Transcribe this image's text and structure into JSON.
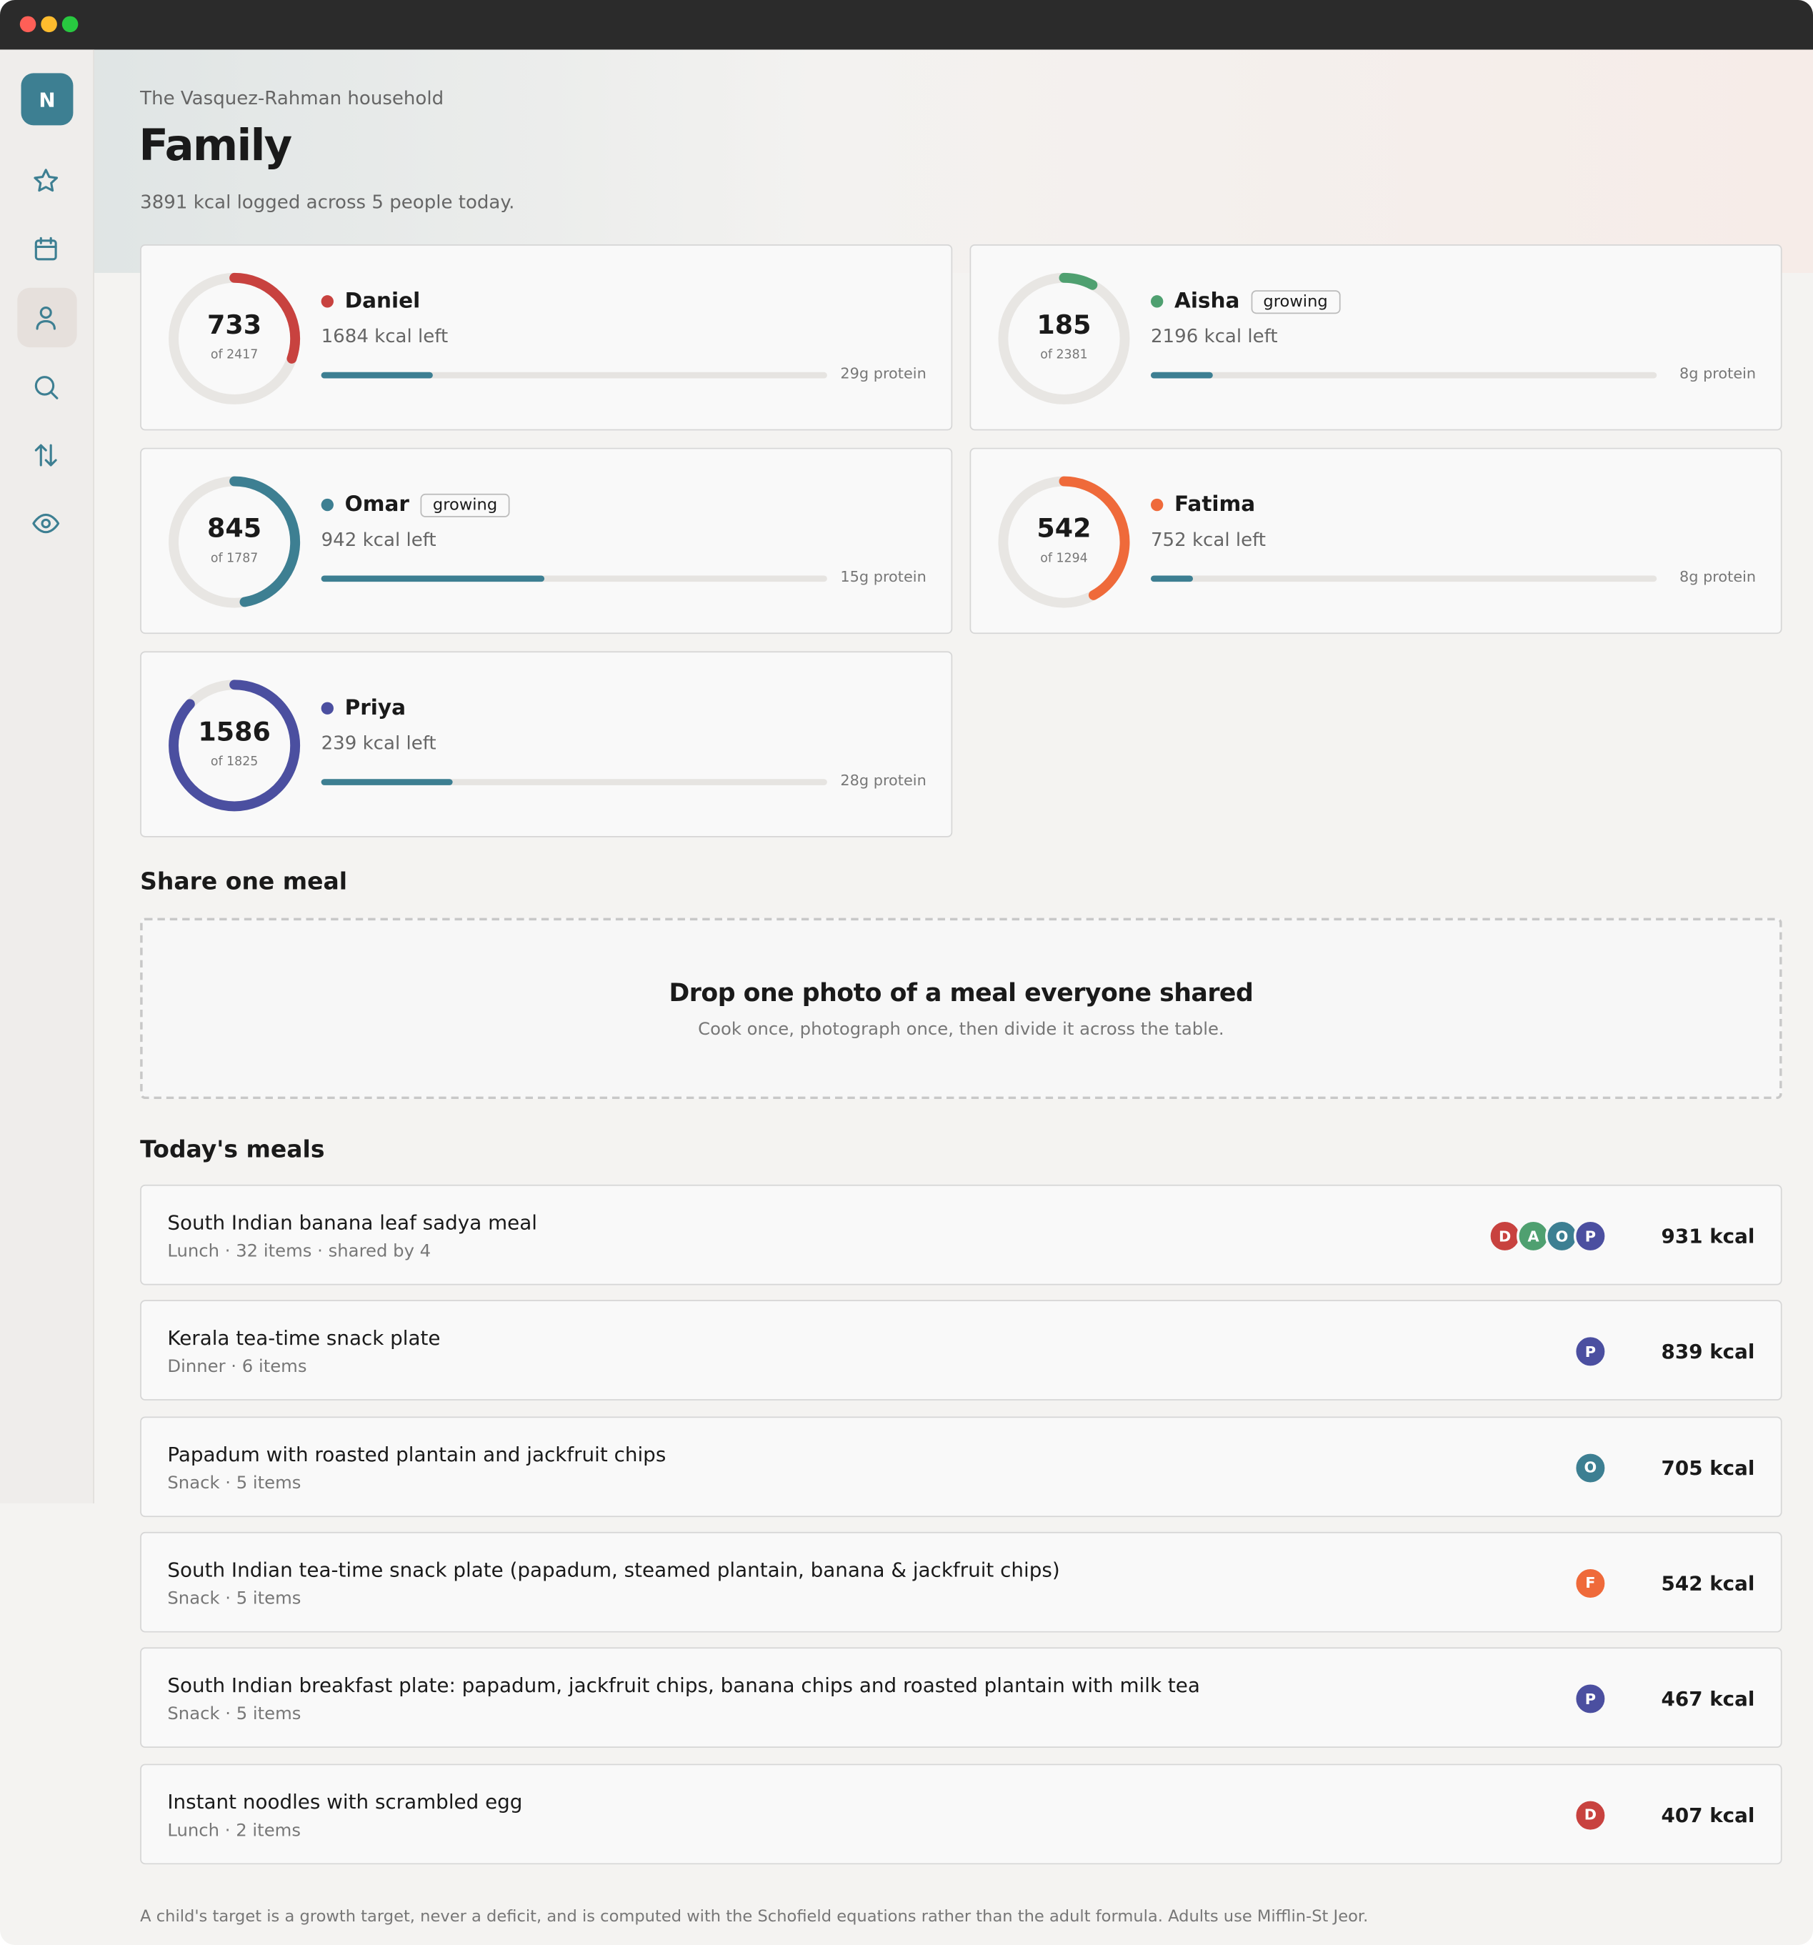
{
  "window": {
    "avatar": "N"
  },
  "header": {
    "household": "The Vasquez-Rahman household",
    "title": "Family",
    "summary": "3891 kcal logged across 5 people today."
  },
  "people": [
    {
      "name": "Daniel",
      "color": "#c8423f",
      "consumed": 733,
      "target": {
        "value": 2417,
        "label": "of 2417"
      },
      "left": "1684 kcal left",
      "protein": "29g protein",
      "tag": null
    },
    {
      "name": "Aisha",
      "color": "#4fa070",
      "consumed": 185,
      "target": {
        "value": 2381,
        "label": "of 2381"
      },
      "left": "2196 kcal left",
      "protein": "8g protein",
      "tag": "growing"
    },
    {
      "name": "Omar",
      "color": "#3d7f92",
      "consumed": 845,
      "target": {
        "value": 1787,
        "label": "of 1787"
      },
      "left": "942 kcal left",
      "protein": "15g protein",
      "tag": "growing"
    },
    {
      "name": "Fatima",
      "color": "#ef6a3a",
      "consumed": 542,
      "target": {
        "value": 1294,
        "label": "of 1294"
      },
      "left": "752 kcal left",
      "protein": "8g protein",
      "tag": null
    },
    {
      "name": "Priya",
      "color": "#4b4fa0",
      "consumed": 1586,
      "target": {
        "value": 1825,
        "label": "of 1825"
      },
      "left": "239 kcal left",
      "protein": "28g protein",
      "tag": null
    }
  ],
  "share": {
    "title": "Share one meal",
    "drop_title": "Drop one photo of a meal everyone shared",
    "drop_text": "Cook once, photograph once, then divide it across the table."
  },
  "meals": {
    "title": "Today's meals",
    "items": [
      {
        "name": "South Indian banana leaf sadya meal",
        "meta": "Lunch · 32 items · shared by 4",
        "kcal": "931 kcal",
        "diners": [
          {
            "initial": "D",
            "color": "#c8423f"
          },
          {
            "initial": "A",
            "color": "#4fa070"
          },
          {
            "initial": "O",
            "color": "#3d7f92"
          },
          {
            "initial": "P",
            "color": "#4b4fa0"
          }
        ]
      },
      {
        "name": "Kerala tea-time snack plate",
        "meta": "Dinner · 6 items",
        "kcal": "839 kcal",
        "diners": [
          {
            "initial": "P",
            "color": "#4b4fa0"
          }
        ]
      },
      {
        "name": "Papadum with roasted plantain and jackfruit chips",
        "meta": "Snack · 5 items",
        "kcal": "705 kcal",
        "diners": [
          {
            "initial": "O",
            "color": "#3d7f92"
          }
        ]
      },
      {
        "name": "South Indian tea-time snack plate (papadum, steamed plantain, banana & jackfruit chips)",
        "meta": "Snack · 5 items",
        "kcal": "542 kcal",
        "diners": [
          {
            "initial": "F",
            "color": "#ef6a3a"
          }
        ]
      },
      {
        "name": "South Indian breakfast plate: papadum, jackfruit chips, banana chips and roasted plantain with milk tea",
        "meta": "Snack · 5 items",
        "kcal": "467 kcal",
        "diners": [
          {
            "initial": "P",
            "color": "#4b4fa0"
          }
        ]
      },
      {
        "name": "Instant noodles with scrambled egg",
        "meta": "Lunch · 2 items",
        "kcal": "407 kcal",
        "diners": [
          {
            "initial": "D",
            "color": "#c8423f"
          }
        ]
      }
    ]
  },
  "footer": "A child's target is a growth target, never a deficit, and is computed with the Schofield equations rather than the adult formula. Adults use Mifflin-St Jeor."
}
